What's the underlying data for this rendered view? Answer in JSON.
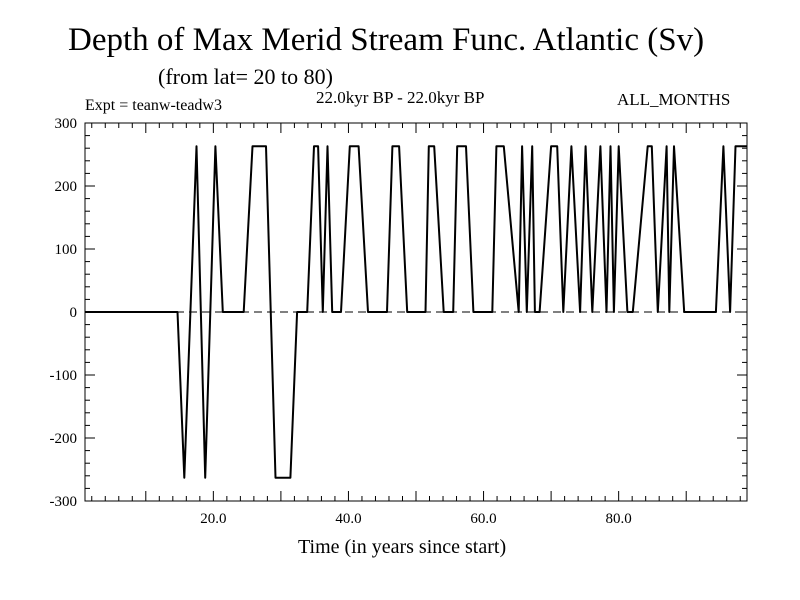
{
  "chart_data": {
    "type": "line",
    "title": "Depth of Max Merid Stream Func. Atlantic (Sv)",
    "subtitle": "(from lat= 20 to 80)",
    "annotations": {
      "left": "Expt = teanw-teadw3",
      "center": "22.0kyr BP - 22.0kyr BP",
      "right": "ALL_MONTHS"
    },
    "xlabel": "Time (in years since start)",
    "ylabel": "",
    "xlim": [
      1,
      99
    ],
    "ylim": [
      -300,
      300
    ],
    "x_ticks": [
      20,
      40,
      60,
      80
    ],
    "x_tick_labels": [
      "20.0",
      "40.0",
      "60.0",
      "80.0"
    ],
    "y_ticks": [
      -300,
      -200,
      -100,
      0,
      100,
      200,
      300
    ],
    "y_tick_labels": [
      "-300",
      "-200",
      "-100",
      "0",
      "100",
      "200",
      "300"
    ],
    "reference_line": {
      "y": 0,
      "style": "dashed"
    },
    "grid": false,
    "series": [
      {
        "x": [
          1,
          14.7,
          15.7,
          17.5,
          18.8,
          20.3,
          21.4,
          24.5,
          25.8,
          27.8,
          29.2,
          31.4,
          32.4,
          33.9,
          34.9,
          35.5,
          36.2,
          36.9,
          37.6,
          38.9,
          40.2,
          41.5,
          42.9,
          45.7,
          46.5,
          47.5,
          48.7,
          51.4,
          51.9,
          52.7,
          54.1,
          55.5,
          56.1,
          57.4,
          58.5,
          61.3,
          61.9,
          63.0,
          65.2,
          65.7,
          66.4,
          67.2,
          67.6,
          68.3,
          70.0,
          70.9,
          71.8,
          73.0,
          74.3,
          75.1,
          76.1,
          77.3,
          78.2,
          78.8,
          79.3,
          80.0,
          81.3,
          82.1,
          84.3,
          84.9,
          85.8,
          87.1,
          87.5,
          88.2,
          89.7,
          90.4,
          91.5,
          94.4,
          95.5,
          96.5,
          97.3,
          98.1,
          99
        ],
        "y": [
          0,
          0,
          -263,
          263,
          -263,
          263,
          0,
          0,
          263,
          263,
          -263,
          -263,
          0,
          0,
          263,
          263,
          0,
          263,
          0,
          0,
          263,
          263,
          0,
          0,
          263,
          263,
          0,
          0,
          263,
          263,
          0,
          0,
          263,
          263,
          0,
          0,
          263,
          263,
          0,
          263,
          0,
          263,
          0,
          0,
          263,
          263,
          0,
          263,
          0,
          263,
          0,
          263,
          0,
          263,
          0,
          263,
          0,
          0,
          263,
          263,
          0,
          263,
          0,
          263,
          0,
          0,
          0,
          0,
          263,
          0,
          263,
          263,
          263
        ]
      }
    ]
  }
}
